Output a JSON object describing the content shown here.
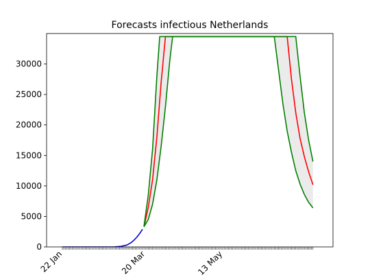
{
  "chart_data": {
    "type": "line",
    "title": "Forecasts infectious Netherlands",
    "xlabel": "",
    "ylabel": "",
    "x_range": [
      "2020-01-11",
      "2020-07-29"
    ],
    "ylim": [
      0,
      35000
    ],
    "yticks": [
      0,
      5000,
      10000,
      15000,
      20000,
      25000,
      30000
    ],
    "xticks": [
      {
        "date": "2020-01-22",
        "label": "22 Jan"
      },
      {
        "date": "2020-03-20",
        "label": "20 Mar"
      },
      {
        "date": "2020-05-13",
        "label": "13 May"
      }
    ],
    "grid": false,
    "legend": "none",
    "colors": {
      "observed": "#0000cc",
      "forecast": "#ff0000",
      "bounds": "#007f00",
      "band": "#ebebeb"
    },
    "series": [
      {
        "role": "observed",
        "x": [
          "2020-01-22",
          "2020-02-10",
          "2020-02-27",
          "2020-03-03",
          "2020-03-07",
          "2020-03-10",
          "2020-03-12",
          "2020-03-14",
          "2020-03-16",
          "2020-03-18"
        ],
        "y": [
          0,
          0,
          0,
          100,
          300,
          700,
          1100,
          1600,
          2200,
          2900
        ]
      },
      {
        "role": "forecast",
        "x": [
          "2020-03-19",
          "2020-03-22",
          "2020-03-25",
          "2020-03-28",
          "2020-03-31",
          "2020-04-03",
          "2020-06-27",
          "2020-06-30",
          "2020-07-03",
          "2020-07-06",
          "2020-07-09",
          "2020-07-12",
          "2020-07-15"
        ],
        "y": [
          3300,
          6500,
          11000,
          18000,
          27000,
          34500,
          34500,
          27500,
          22000,
          17800,
          14800,
          12300,
          10200
        ]
      },
      {
        "role": "upper bound",
        "x": [
          "2020-03-19",
          "2020-03-22",
          "2020-03-25",
          "2020-03-28",
          "2020-03-30",
          "2020-06-18",
          "2020-06-21",
          "2020-06-24",
          "2020-06-27",
          "2020-06-30",
          "2020-07-03",
          "2020-07-06",
          "2020-07-09",
          "2020-07-12",
          "2020-07-15"
        ],
        "y": [
          3400,
          8500,
          16000,
          28000,
          34500,
          34500,
          29000,
          23500,
          19000,
          15500,
          12500,
          10300,
          8600,
          7300,
          6400
        ]
      },
      {
        "role": "lower bound",
        "x": [
          "2020-03-19",
          "2020-03-22",
          "2020-03-25",
          "2020-03-28",
          "2020-03-31",
          "2020-04-03",
          "2020-04-06",
          "2020-04-08",
          "2020-07-03",
          "2020-07-06",
          "2020-07-09",
          "2020-07-12",
          "2020-07-15"
        ],
        "y": [
          3300,
          4500,
          7000,
          11000,
          16500,
          23000,
          30500,
          34500,
          34500,
          28000,
          22000,
          17500,
          14000
        ]
      }
    ]
  }
}
